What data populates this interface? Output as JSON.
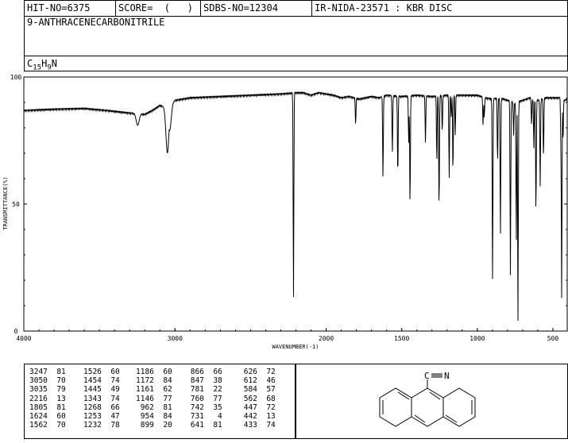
{
  "header": {
    "hit_no": "HIT-NO=6375",
    "score": "SCORE=  (   )",
    "sdbs_no": "SDBS-NO=12304",
    "ir_nida": "IR-NIDA-23571 : KBR DISC",
    "compound_name": "9-ANTHRACENECARBONITRILE",
    "formula": {
      "c": "C",
      "c_n": "15",
      "h": "H",
      "h_n": "9",
      "n": "N"
    }
  },
  "chart_data": {
    "type": "line",
    "xlabel": "WAVENUMBER(-1)",
    "ylabel": "TRANSMITTANCE(%)",
    "xlim": [
      4000,
      400
    ],
    "ylim": [
      0,
      100
    ],
    "x_ticks": [
      4000,
      3000,
      2000,
      1500,
      1000,
      500
    ],
    "y_ticks": [
      0,
      50,
      100
    ],
    "x_tick_labels": [
      "4000",
      "3000",
      "2000",
      "1500",
      "1000",
      "500"
    ],
    "y_tick_labels": [
      "0",
      "50",
      "100"
    ],
    "baseline": [
      [
        4000,
        87
      ],
      [
        3800,
        87.5
      ],
      [
        3600,
        87.8
      ],
      [
        3450,
        87
      ],
      [
        3300,
        86
      ],
      [
        3200,
        85.5
      ],
      [
        3150,
        87
      ],
      [
        3100,
        89
      ],
      [
        3050,
        88
      ],
      [
        3000,
        91
      ],
      [
        2900,
        92
      ],
      [
        2700,
        92.5
      ],
      [
        2500,
        93
      ],
      [
        2300,
        93.5
      ],
      [
        2200,
        94
      ],
      [
        2150,
        94
      ],
      [
        2100,
        93
      ],
      [
        2050,
        94
      ],
      [
        1950,
        93
      ],
      [
        1900,
        92
      ],
      [
        1850,
        92.5
      ],
      [
        1780,
        91.5
      ],
      [
        1700,
        92.5
      ],
      [
        1650,
        92
      ],
      [
        1600,
        93
      ],
      [
        1500,
        92.5
      ],
      [
        1400,
        93
      ],
      [
        1300,
        92.5
      ],
      [
        1200,
        93
      ],
      [
        1100,
        93
      ],
      [
        1000,
        93
      ],
      [
        950,
        92
      ],
      [
        900,
        91.5
      ],
      [
        850,
        92
      ],
      [
        800,
        91
      ],
      [
        750,
        90
      ],
      [
        700,
        91
      ],
      [
        650,
        92
      ],
      [
        600,
        91
      ],
      [
        550,
        92
      ],
      [
        500,
        92
      ],
      [
        450,
        92
      ],
      [
        420,
        91
      ],
      [
        400,
        92
      ]
    ],
    "peaks": [
      {
        "x": 3247,
        "y": 81
      },
      {
        "x": 3050,
        "y": 70
      },
      {
        "x": 3035,
        "y": 79
      },
      {
        "x": 2216,
        "y": 13
      },
      {
        "x": 1805,
        "y": 81
      },
      {
        "x": 1624,
        "y": 60
      },
      {
        "x": 1562,
        "y": 70
      },
      {
        "x": 1526,
        "y": 60
      },
      {
        "x": 1454,
        "y": 74
      },
      {
        "x": 1445,
        "y": 49
      },
      {
        "x": 1343,
        "y": 74
      },
      {
        "x": 1268,
        "y": 66
      },
      {
        "x": 1253,
        "y": 47
      },
      {
        "x": 1232,
        "y": 78
      },
      {
        "x": 1186,
        "y": 60
      },
      {
        "x": 1172,
        "y": 84
      },
      {
        "x": 1161,
        "y": 62
      },
      {
        "x": 1146,
        "y": 77
      },
      {
        "x": 962,
        "y": 81
      },
      {
        "x": 954,
        "y": 84
      },
      {
        "x": 899,
        "y": 20
      },
      {
        "x": 866,
        "y": 66
      },
      {
        "x": 847,
        "y": 38
      },
      {
        "x": 781,
        "y": 22
      },
      {
        "x": 760,
        "y": 77
      },
      {
        "x": 742,
        "y": 35
      },
      {
        "x": 731,
        "y": 4
      },
      {
        "x": 641,
        "y": 81
      },
      {
        "x": 626,
        "y": 72
      },
      {
        "x": 612,
        "y": 46
      },
      {
        "x": 584,
        "y": 57
      },
      {
        "x": 562,
        "y": 68
      },
      {
        "x": 447,
        "y": 72
      },
      {
        "x": 442,
        "y": 13
      },
      {
        "x": 433,
        "y": 74
      }
    ]
  },
  "peak_table": {
    "columns": [
      [
        [
          "3247",
          "81"
        ],
        [
          "3050",
          "70"
        ],
        [
          "3035",
          "79"
        ],
        [
          "2216",
          "13"
        ],
        [
          "1805",
          "81"
        ],
        [
          "1624",
          "60"
        ],
        [
          "1562",
          "70"
        ]
      ],
      [
        [
          "1526",
          "60"
        ],
        [
          "1454",
          "74"
        ],
        [
          "1445",
          "49"
        ],
        [
          "1343",
          "74"
        ],
        [
          "1268",
          "66"
        ],
        [
          "1253",
          "47"
        ],
        [
          "1232",
          "78"
        ]
      ],
      [
        [
          "1186",
          "60"
        ],
        [
          "1172",
          "84"
        ],
        [
          "1161",
          "62"
        ],
        [
          "1146",
          "77"
        ],
        [
          "962",
          "81"
        ],
        [
          "954",
          "84"
        ],
        [
          "899",
          "20"
        ]
      ],
      [
        [
          "866",
          "66"
        ],
        [
          "847",
          "38"
        ],
        [
          "781",
          "22"
        ],
        [
          "760",
          "77"
        ],
        [
          "742",
          "35"
        ],
        [
          "731",
          "4"
        ],
        [
          "641",
          "81"
        ]
      ],
      [
        [
          "626",
          "72"
        ],
        [
          "612",
          "46"
        ],
        [
          "584",
          "57"
        ],
        [
          "562",
          "68"
        ],
        [
          "447",
          "72"
        ],
        [
          "442",
          "13"
        ],
        [
          "433",
          "74"
        ]
      ]
    ]
  },
  "structure": {
    "atom_c": "C",
    "atom_n": "N"
  }
}
